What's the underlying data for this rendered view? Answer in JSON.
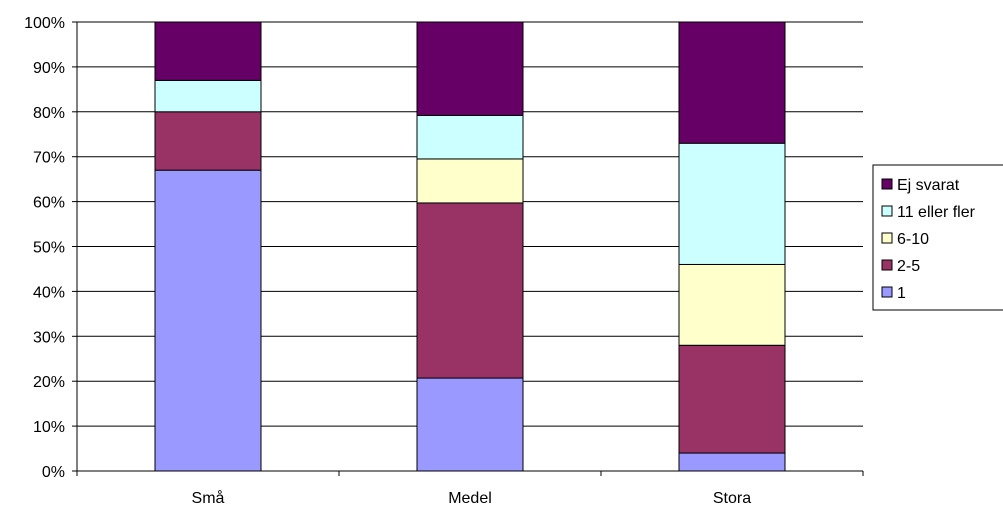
{
  "chart_data": {
    "type": "bar",
    "stacked": true,
    "percent": true,
    "categories": [
      "Små",
      "Medel",
      "Stora"
    ],
    "series": [
      {
        "name": "1",
        "color": "#9999ff",
        "values": [
          67,
          20.7,
          4
        ]
      },
      {
        "name": "2-5",
        "color": "#993366",
        "values": [
          13,
          39,
          24
        ]
      },
      {
        "name": "6-10",
        "color": "#ffffcc",
        "values": [
          0,
          9.8,
          18
        ]
      },
      {
        "name": "11 eller fler",
        "color": "#ccffff",
        "values": [
          7,
          9.7,
          27
        ]
      },
      {
        "name": "Ej svarat",
        "color": "#660066",
        "values": [
          13,
          20.8,
          27
        ]
      }
    ],
    "ylim": [
      0,
      100
    ],
    "yticks": [
      "0%",
      "10%",
      "20%",
      "30%",
      "40%",
      "50%",
      "60%",
      "70%",
      "80%",
      "90%",
      "100%"
    ],
    "grid": true,
    "legend": "right",
    "legend_order": [
      "Ej svarat",
      "11 eller fler",
      "6-10",
      "2-5",
      "1"
    ]
  }
}
